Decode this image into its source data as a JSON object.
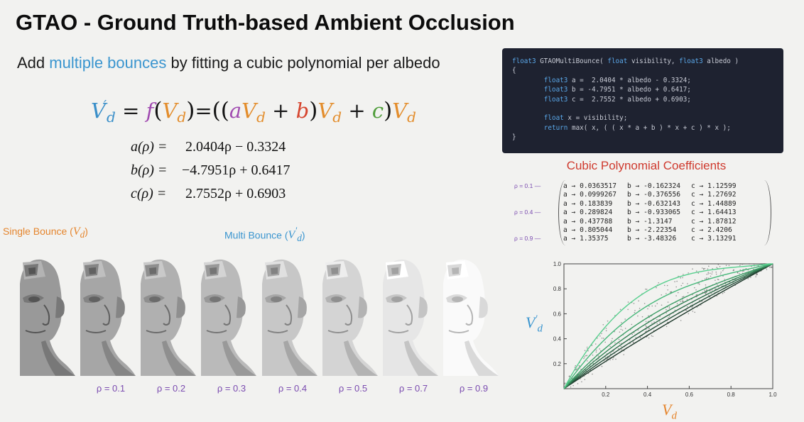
{
  "title": "GTAO - Ground Truth-based Ambient Occlusion",
  "subtitle": {
    "before": "Add ",
    "highlight": "multiple bounces",
    "after": " by fitting a cubic polynomial per albedo"
  },
  "formula": {
    "V": "V",
    "sub_d": "d",
    "prime": "′",
    "equals": " = ",
    "f": "f",
    "a": "a",
    "b": "b",
    "c": "c",
    "plus": " + "
  },
  "coefficient_equations": [
    {
      "lhs": "a(ρ) =",
      "rhs": "  2.0404ρ − 0.3324"
    },
    {
      "lhs": "b(ρ) =",
      "rhs": "−4.7951ρ + 0.6417"
    },
    {
      "lhs": "c(ρ) =",
      "rhs": "  2.7552ρ + 0.6903"
    }
  ],
  "code": {
    "lines": [
      "float3 GTAOMultiBounce( float visibility, float3 albedo )",
      "{",
      "        float3 a =  2.0404 * albedo - 0.3324;",
      "        float3 b = -4.7951 * albedo + 0.6417;",
      "        float3 c =  2.7552 * albedo + 0.6903;",
      "",
      "        float x = visibility;",
      "        return max( x, ( ( x * a + b ) * x + c ) * x );",
      "}"
    ],
    "keyword_color": "#5aa7e8",
    "text_color": "#c9ccd6",
    "background": "#1e2230"
  },
  "render_labels": {
    "single": "Single Bounce (",
    "single_var": "V",
    "single_sub": "d",
    "multi": "Multi Bounce (",
    "multi_var": "V",
    "multi_sub": "d",
    "multi_prime": "′",
    "close": ")"
  },
  "renders": [
    {
      "rho": null,
      "brightness": 0.55
    },
    {
      "rho": "ρ = 0.1",
      "brightness": 0.6
    },
    {
      "rho": "ρ = 0.2",
      "brightness": 0.64
    },
    {
      "rho": "ρ = 0.3",
      "brightness": 0.68
    },
    {
      "rho": "ρ = 0.4",
      "brightness": 0.73
    },
    {
      "rho": "ρ = 0.5",
      "brightness": 0.78
    },
    {
      "rho": "ρ = 0.7",
      "brightness": 0.85
    },
    {
      "rho": "ρ = 0.9",
      "brightness": 0.93
    }
  ],
  "cubic_coefficients": {
    "title": "Cubic Polynomial Coefficients",
    "rows": [
      {
        "a": "a → 0.0363517",
        "b": "b → -0.162324",
        "c": "c → 1.12599"
      },
      {
        "a": "a → 0.0999267",
        "b": "b → -0.376556",
        "c": "c → 1.27692"
      },
      {
        "a": "a → 0.183839",
        "b": "b → -0.632143",
        "c": "c → 1.44889"
      },
      {
        "a": "a → 0.289824",
        "b": "b → -0.933065",
        "c": "c → 1.64413"
      },
      {
        "a": "a → 0.437788",
        "b": "b → -1.3147",
        "c": "c → 1.87812"
      },
      {
        "a": "a → 0.805044",
        "b": "b → -2.22354",
        "c": "c → 2.4206"
      },
      {
        "a": "a → 1.35375",
        "b": "b → -3.48326",
        "c": "c → 3.13291"
      }
    ],
    "rho_tags": [
      "ρ = 0.1",
      "ρ = 0.4",
      "ρ = 0.9"
    ]
  },
  "chart_data": {
    "type": "scatter",
    "xlabel": "Vd",
    "ylabel": "V'd",
    "xlim": [
      0,
      1.0
    ],
    "ylim": [
      0,
      1.0
    ],
    "x_ticks": [
      "0.2",
      "0.4",
      "0.6",
      "0.8",
      "1.0"
    ],
    "y_ticks": [
      "0.2",
      "0.4",
      "0.6",
      "0.8",
      "1.0"
    ],
    "grid": false,
    "curve_colors": [
      "#1f3a2c",
      "#25503a",
      "#2c6a48",
      "#348456",
      "#3c9e66",
      "#46b87a",
      "#58cf8e"
    ],
    "series": [
      {
        "albedo": 0.1,
        "a": 0.0363517,
        "b": -0.162324,
        "c": 1.12599
      },
      {
        "albedo": 0.2,
        "a": 0.0999267,
        "b": -0.376556,
        "c": 1.27692
      },
      {
        "albedo": 0.3,
        "a": 0.183839,
        "b": -0.632143,
        "c": 1.44889
      },
      {
        "albedo": 0.4,
        "a": 0.289824,
        "b": -0.933065,
        "c": 1.64413
      },
      {
        "albedo": 0.5,
        "a": 0.437788,
        "b": -1.3147,
        "c": 1.87812
      },
      {
        "albedo": 0.7,
        "a": 0.805044,
        "b": -2.22354,
        "c": 2.4206
      },
      {
        "albedo": 0.9,
        "a": 1.35375,
        "b": -3.48326,
        "c": 3.13291
      }
    ]
  }
}
